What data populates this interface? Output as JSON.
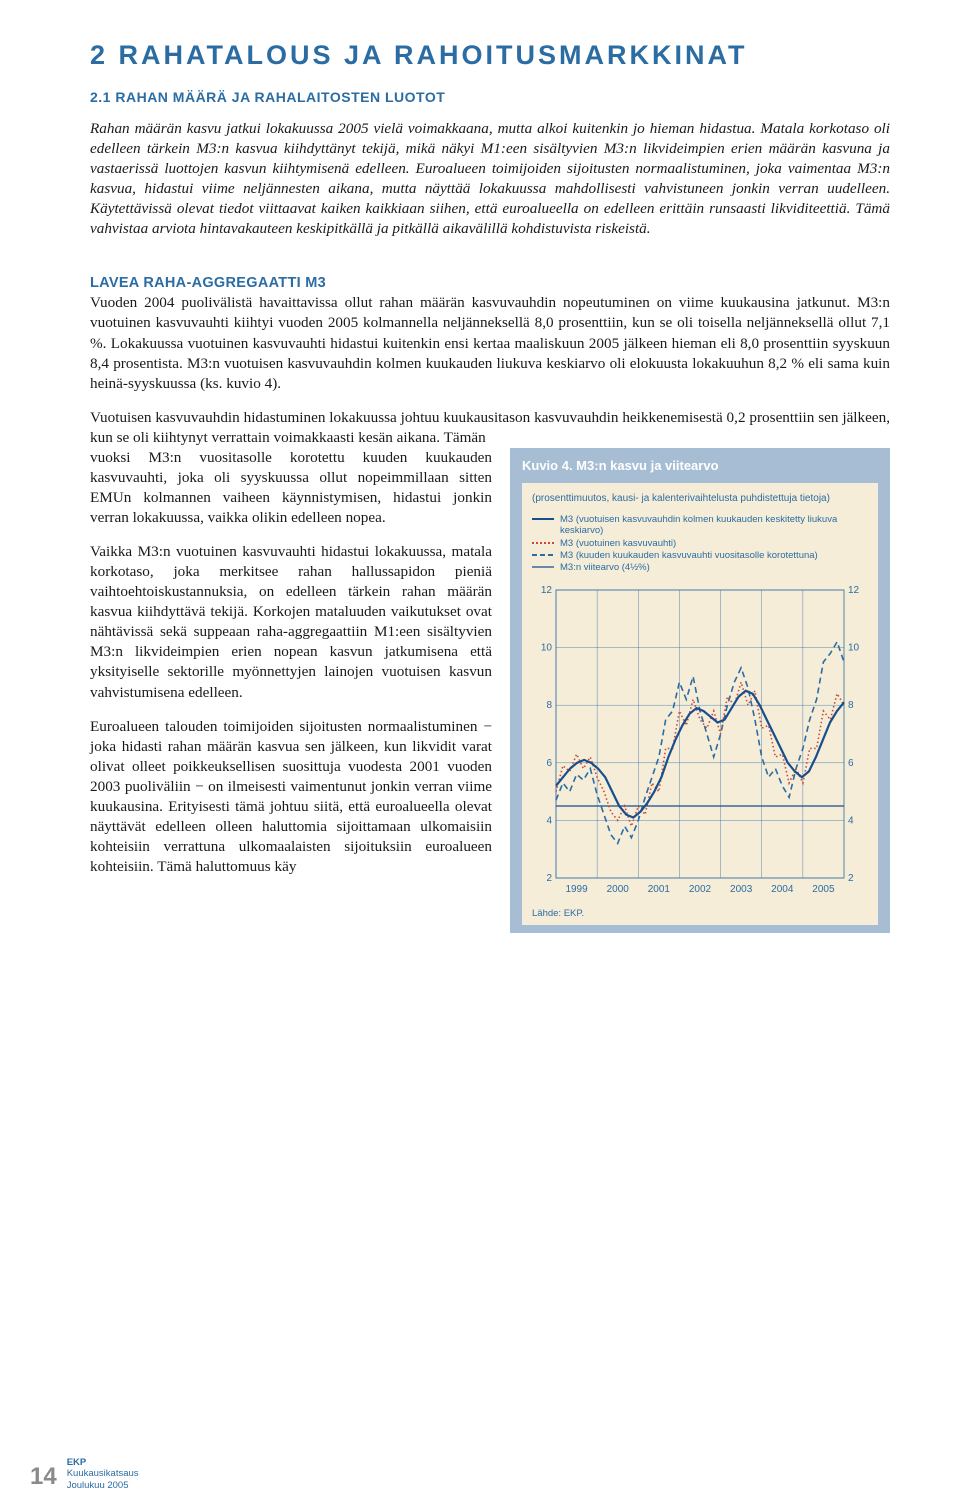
{
  "section": {
    "number": "2",
    "title": "RAHATALOUS JA RAHOITUSMARKKINAT",
    "sub_number": "2.1",
    "sub_title": "RAHAN MÄÄRÄ JA RAHALAITOSTEN LUOTOT"
  },
  "intro_italic": "Rahan määrän kasvu jatkui lokakuussa 2005 vielä voimakkaana, mutta alkoi kuitenkin jo hieman hidastua. Matala korkotaso oli edelleen tärkein M3:n kasvua kiihdyttänyt tekijä, mikä näkyi M1:een sisältyvien M3:n likvideimpien erien määrän kasvuna ja vastaerissä luottojen kasvun kiihtymisenä edelleen. Euroalueen toimijoiden sijoitusten normaalistuminen, joka vaimentaa M3:n kasvua, hidastui viime neljännesten aikana, mutta näyttää lokakuussa mahdollisesti vahvistuneen jonkin verran uudelleen. Käytettävissä olevat tiedot viittaavat kaiken kaikkiaan siihen, että euroalueella on edelleen erittäin runsaasti likviditeettiä. Tämä vahvistaa arviota hintavakauteen keskipitkällä ja pitkällä aikavälillä kohdistuvista riskeistä.",
  "heading2": "LAVEA RAHA-AGGREGAATTI M3",
  "para1": "Vuoden 2004 puolivälistä havaittavissa ollut rahan määrän kasvuvauhdin nopeutuminen on viime kuukausina jatkunut. M3:n vuotuinen kasvuvauhti kiihtyi vuoden 2005 kolmannella neljänneksellä 8,0 prosenttiin, kun se oli toisella neljänneksellä ollut 7,1 %. Lokakuussa vuotuinen kasvuvauhti hidastui kuitenkin ensi kertaa maaliskuun 2005 jälkeen hieman eli 8,0 prosenttiin syyskuun 8,4 prosentista. M3:n vuotuisen kasvuvauhdin kolmen kuukauden liukuva keskiarvo oli elokuusta lokakuuhun 8,2 % eli sama kuin heinä-syyskuussa (ks. kuvio 4).",
  "para2_full": "Vuotuisen kasvuvauhdin hidastuminen lokakuussa johtuu kuukausitason kasvuvauhdin heikkenemisestä 0,2 prosenttiin sen jälkeen, kun se oli kiihtynyt verrattain voimakkaasti kesän aikana. Tämän",
  "left": {
    "p1": "vuoksi M3:n vuositasolle korotettu kuuden kuukauden kasvuvauhti, joka oli syyskuussa ollut nopeimmillaan sitten EMUn kolmannen vaiheen käynnistymisen, hidastui jonkin verran lokakuussa, vaikka olikin edelleen nopea.",
    "p2": "Vaikka M3:n vuotuinen kasvuvauhti hidastui lokakuussa, matala korkotaso, joka merkitsee rahan hallussapidon pieniä vaihtoehtoiskustannuksia, on edelleen tärkein rahan määrän kasvua kiihdyttävä tekijä. Korkojen mataluuden vaikutukset ovat nähtävissä sekä suppeaan raha-aggregaattiin M1:een sisältyvien M3:n likvideimpien erien nopean kasvun jatkumisena että yksityiselle sektorille myönnettyjen lainojen vuotuisen kasvun vahvistumisena edelleen.",
    "p3": "Euroalueen talouden toimijoiden sijoitusten normaalistuminen − joka hidasti rahan määrän kasvua sen jälkeen, kun likvidit varat olivat olleet poikkeuksellisen suosittuja vuodesta 2001 vuoden 2003 puoliväliin − on ilmeisesti vaimentunut jonkin verran viime kuukausina. Erityisesti tämä johtuu siitä, että euroalueella olevat näyttävät edelleen olleen haluttomia sijoittamaan ulkomaisiin kohteisiin verrattuna ulkomaalaisten sijoituksiin euroalueen kohteisiin. Tämä haluttomuus käy"
  },
  "chart": {
    "title": "Kuvio 4. M3:n kasvu ja viitearvo",
    "subtitle": "(prosenttimuutos, kausi- ja kalenterivaihtelusta puhdistettuja tietoja)",
    "legend": {
      "s1": "M3 (vuotuisen kasvuvauhdin kolmen kuukauden keskitetty liukuva keskiarvo)",
      "s2": "M3 (vuotuinen kasvuvauhti)",
      "s3": "M3 (kuuden kuukauden kasvuvauhti vuositasolle korotettuna)",
      "s4": "M3:n viitearvo (4½%)"
    },
    "colors": {
      "s1_solid": "#184e8c",
      "s2_dotted": "#c84a3a",
      "s3_dashed": "#2b6ca3",
      "s4_ref": "#184e8c",
      "grid": "#2b6ca3",
      "plot_bg": "#f5edd8",
      "box_bg": "#a6bdd4",
      "tick_text": "#2b6ca3"
    },
    "xlabels": [
      "1999",
      "2000",
      "2001",
      "2002",
      "2003",
      "2004",
      "2005"
    ],
    "ylim": [
      2,
      12
    ],
    "yticks": [
      2,
      4,
      6,
      8,
      10,
      12
    ],
    "ref_value": 4.5,
    "series_s1": [
      5.2,
      5.5,
      5.8,
      6.0,
      6.1,
      6.0,
      5.8,
      5.5,
      5.0,
      4.5,
      4.2,
      4.1,
      4.3,
      4.6,
      5.0,
      5.5,
      6.2,
      6.8,
      7.3,
      7.7,
      7.9,
      7.8,
      7.6,
      7.4,
      7.5,
      7.9,
      8.3,
      8.5,
      8.4,
      8.0,
      7.5,
      7.0,
      6.5,
      6.0,
      5.7,
      5.5,
      5.7,
      6.2,
      6.8,
      7.4,
      7.8,
      8.1
    ],
    "series_s2": [
      5.0,
      5.9,
      5.7,
      6.3,
      5.8,
      6.2,
      5.5,
      5.0,
      4.3,
      4.0,
      4.5,
      3.8,
      4.5,
      4.2,
      5.3,
      5.0,
      6.5,
      6.5,
      7.8,
      7.3,
      8.2,
      7.5,
      7.2,
      7.8,
      7.0,
      8.3,
      8.0,
      8.8,
      8.0,
      8.5,
      7.2,
      7.3,
      6.2,
      6.3,
      5.3,
      5.8,
      5.3,
      6.5,
      6.5,
      7.8,
      7.5,
      8.4,
      8.0
    ],
    "series_s3": [
      4.7,
      5.3,
      5.0,
      5.6,
      5.4,
      5.8,
      4.9,
      4.2,
      3.5,
      3.2,
      3.8,
      3.4,
      4.0,
      4.8,
      5.5,
      6.2,
      7.5,
      7.8,
      8.8,
      8.2,
      9.0,
      7.8,
      7.0,
      6.2,
      7.0,
      8.0,
      8.8,
      9.3,
      8.6,
      7.5,
      6.2,
      5.5,
      5.8,
      5.2,
      4.8,
      5.8,
      6.5,
      7.5,
      8.2,
      9.5,
      9.8,
      10.2,
      9.5
    ],
    "source": "Lähde: EKP."
  },
  "footer": {
    "page": "14",
    "org": "EKP",
    "pub": "Kuukausikatsaus",
    "date": "Joulukuu 2005"
  }
}
